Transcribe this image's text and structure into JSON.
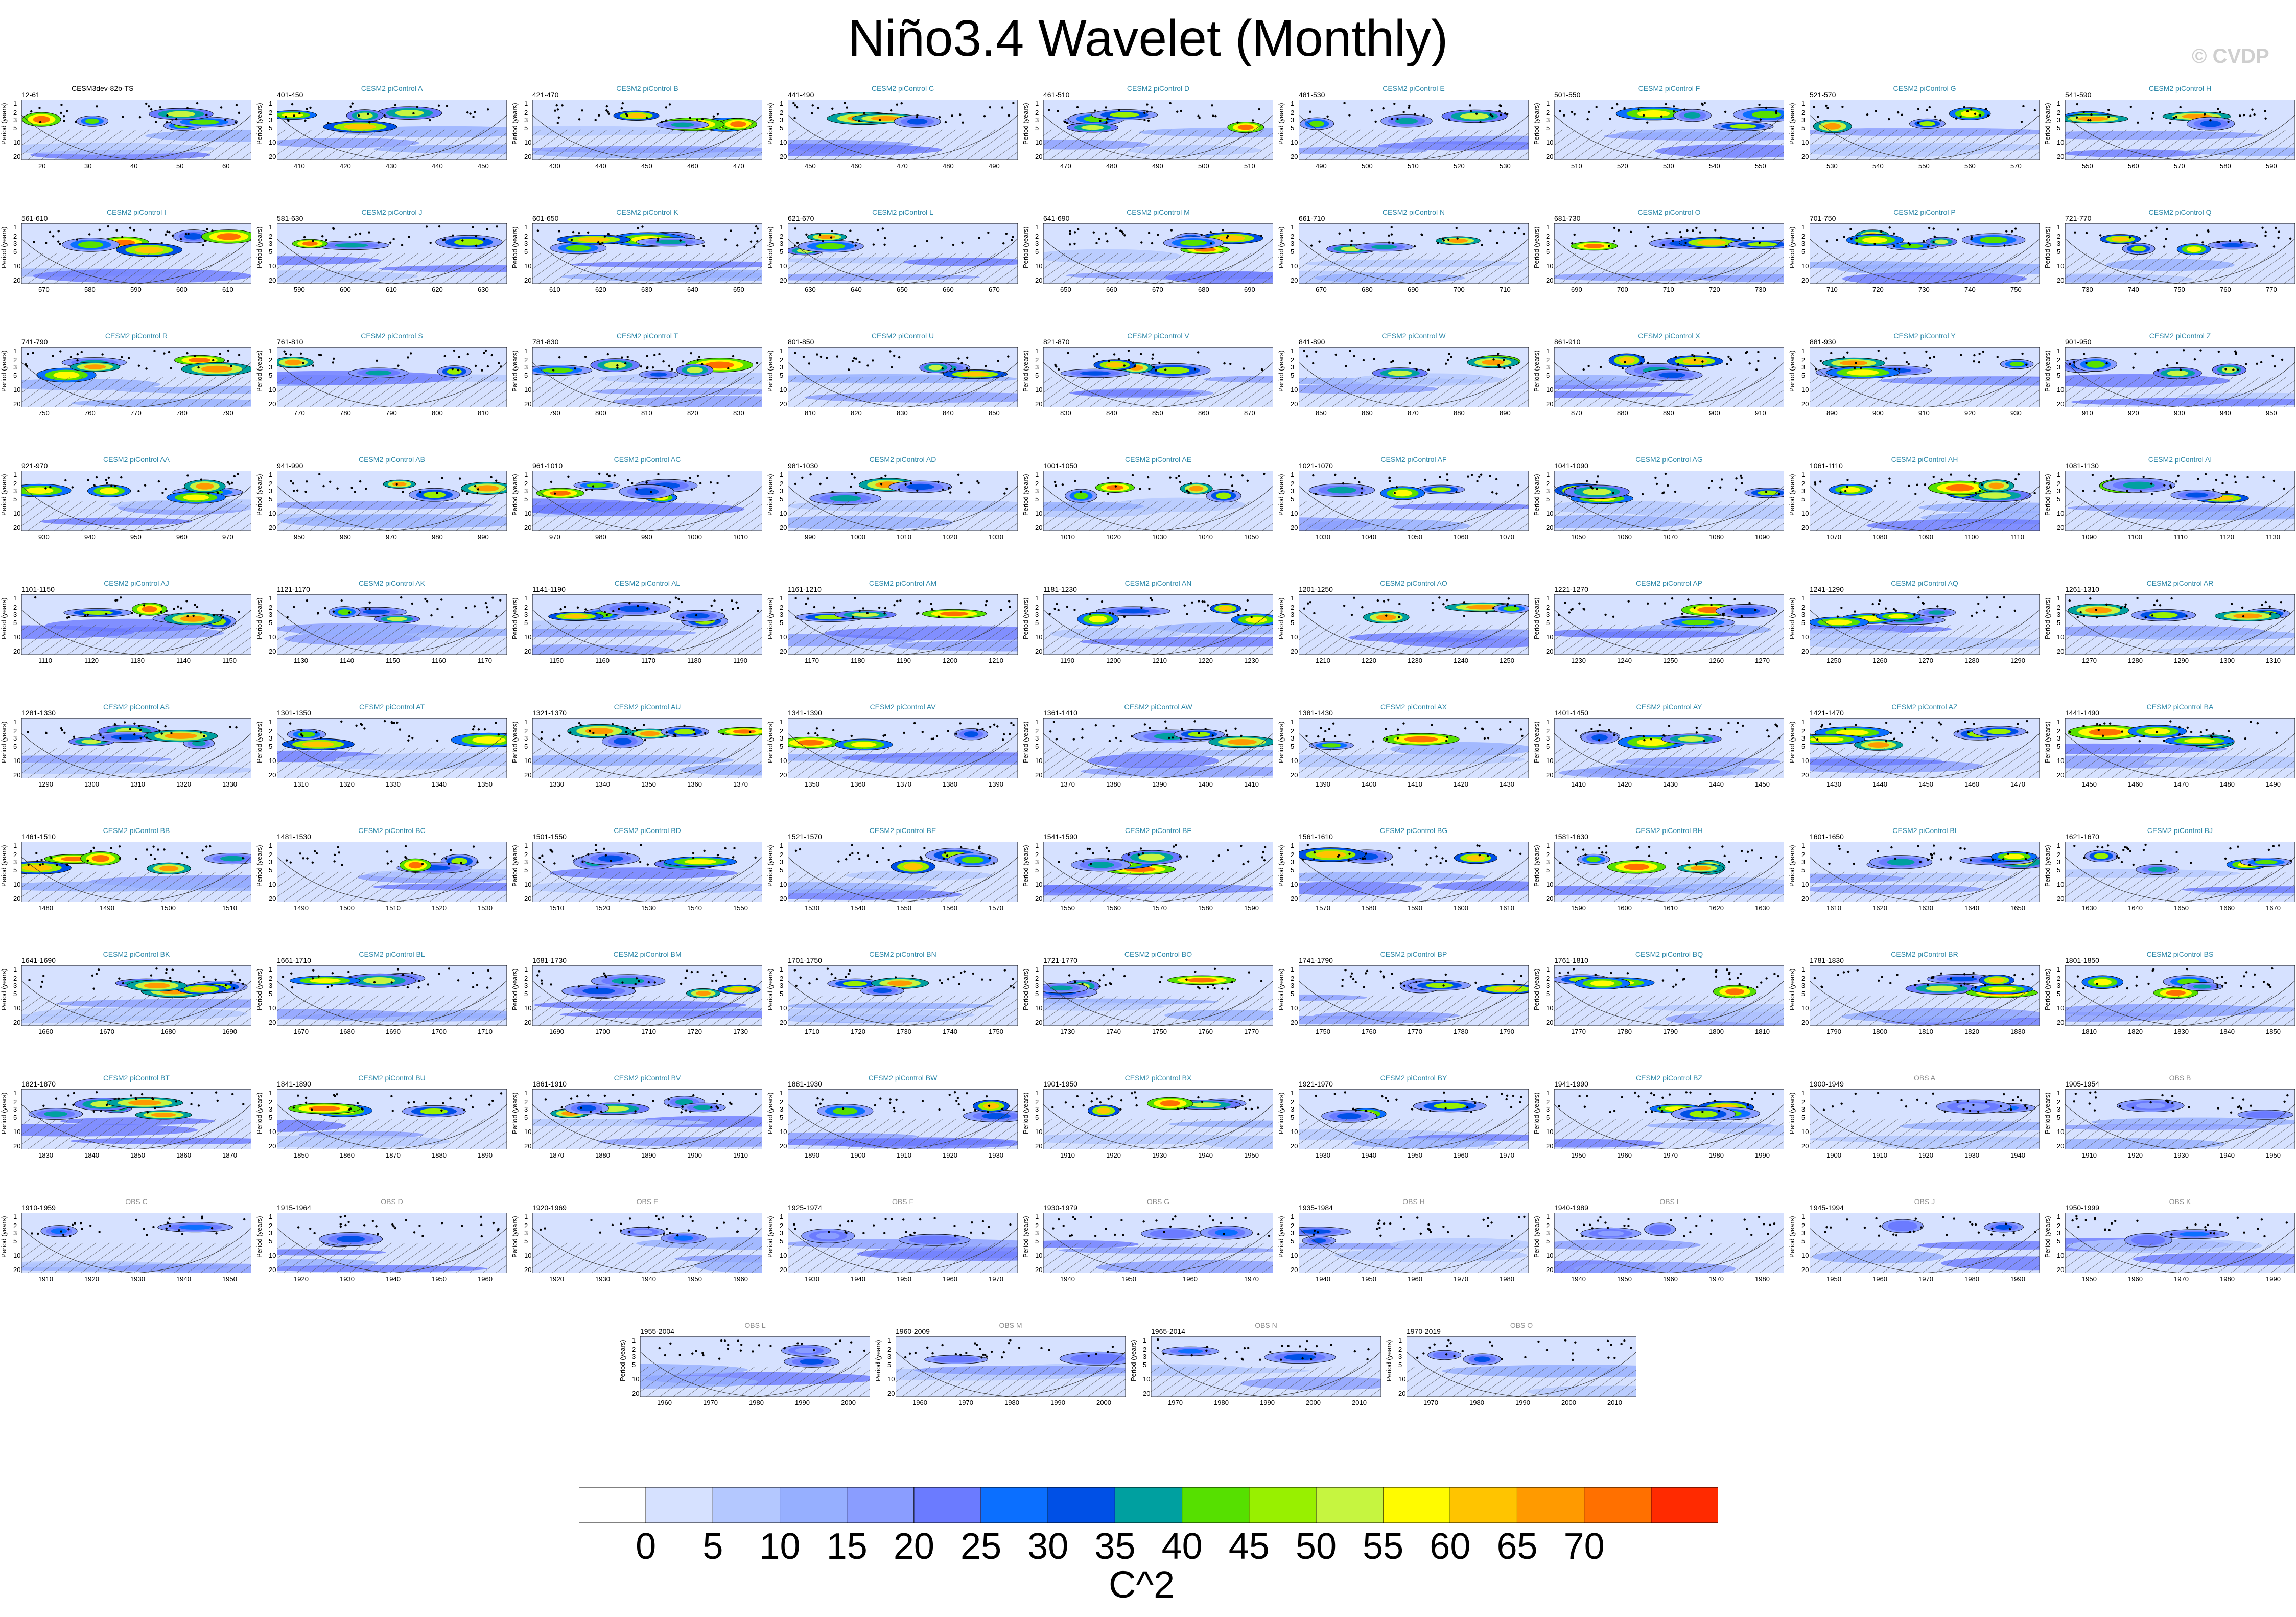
{
  "title": "Niño3.4 Wavelet (Monthly)",
  "watermark": "© CVDP",
  "y_axis_title": "Period (years)",
  "colorbar": {
    "unit_label": "C^2",
    "ticks": [
      "0",
      "5",
      "10",
      "15",
      "20",
      "25",
      "30",
      "35",
      "40",
      "45",
      "50",
      "55",
      "60",
      "65",
      "70"
    ],
    "colors": [
      "#ffffff",
      "#d6e1ff",
      "#b4c8ff",
      "#96afff",
      "#8a9dff",
      "#6b7bff",
      "#0b6fff",
      "#0050e6",
      "#00a0a0",
      "#56e000",
      "#98f000",
      "#c6f540",
      "#fffb00",
      "#ffc400",
      "#ff9a00",
      "#ff7000",
      "#ff2a00"
    ]
  },
  "chart_data": {
    "type": "heatmap",
    "title": "Niño3.4 Wavelet (Monthly)",
    "ylabel": "Period (years)",
    "yticks": [
      "1",
      "2",
      "3",
      "5",
      "10",
      "20"
    ],
    "panels": [
      {
        "years": "12-61",
        "name": "CESM3dev-82b-TS",
        "xticks": [
          "20",
          "30",
          "40",
          "50",
          "60"
        ]
      },
      {
        "years": "401-450",
        "name": "CESM2 piControl A",
        "xticks": [
          "410",
          "420",
          "430",
          "440",
          "450"
        ]
      },
      {
        "years": "421-470",
        "name": "CESM2 piControl B",
        "xticks": [
          "430",
          "440",
          "450",
          "460",
          "470"
        ]
      },
      {
        "years": "441-490",
        "name": "CESM2 piControl C",
        "xticks": [
          "450",
          "460",
          "470",
          "480",
          "490"
        ]
      },
      {
        "years": "461-510",
        "name": "CESM2 piControl D",
        "xticks": [
          "470",
          "480",
          "490",
          "500",
          "510"
        ]
      },
      {
        "years": "481-530",
        "name": "CESM2 piControl E",
        "xticks": [
          "490",
          "500",
          "510",
          "520",
          "530"
        ]
      },
      {
        "years": "501-550",
        "name": "CESM2 piControl F",
        "xticks": [
          "510",
          "520",
          "530",
          "540",
          "550"
        ]
      },
      {
        "years": "521-570",
        "name": "CESM2 piControl G",
        "xticks": [
          "530",
          "540",
          "550",
          "560",
          "570"
        ]
      },
      {
        "years": "541-590",
        "name": "CESM2 piControl H",
        "xticks": [
          "550",
          "560",
          "570",
          "580",
          "590"
        ]
      },
      {
        "years": "561-610",
        "name": "CESM2 piControl I",
        "xticks": [
          "570",
          "580",
          "590",
          "600",
          "610"
        ]
      },
      {
        "years": "581-630",
        "name": "CESM2 piControl J",
        "xticks": [
          "590",
          "600",
          "610",
          "620",
          "630"
        ]
      },
      {
        "years": "601-650",
        "name": "CESM2 piControl K",
        "xticks": [
          "610",
          "620",
          "630",
          "640",
          "650"
        ]
      },
      {
        "years": "621-670",
        "name": "CESM2 piControl L",
        "xticks": [
          "630",
          "640",
          "650",
          "660",
          "670"
        ]
      },
      {
        "years": "641-690",
        "name": "CESM2 piControl M",
        "xticks": [
          "650",
          "660",
          "670",
          "680",
          "690"
        ]
      },
      {
        "years": "661-710",
        "name": "CESM2 piControl N",
        "xticks": [
          "670",
          "680",
          "690",
          "700",
          "710"
        ]
      },
      {
        "years": "681-730",
        "name": "CESM2 piControl O",
        "xticks": [
          "690",
          "700",
          "710",
          "720",
          "730"
        ]
      },
      {
        "years": "701-750",
        "name": "CESM2 piControl P",
        "xticks": [
          "710",
          "720",
          "730",
          "740",
          "750"
        ]
      },
      {
        "years": "721-770",
        "name": "CESM2 piControl Q",
        "xticks": [
          "730",
          "740",
          "750",
          "760",
          "770"
        ]
      },
      {
        "years": "741-790",
        "name": "CESM2 piControl R",
        "xticks": [
          "750",
          "760",
          "770",
          "780",
          "790"
        ]
      },
      {
        "years": "761-810",
        "name": "CESM2 piControl S",
        "xticks": [
          "770",
          "780",
          "790",
          "800",
          "810"
        ]
      },
      {
        "years": "781-830",
        "name": "CESM2 piControl T",
        "xticks": [
          "790",
          "800",
          "810",
          "820",
          "830"
        ]
      },
      {
        "years": "801-850",
        "name": "CESM2 piControl U",
        "xticks": [
          "810",
          "820",
          "830",
          "840",
          "850"
        ]
      },
      {
        "years": "821-870",
        "name": "CESM2 piControl V",
        "xticks": [
          "830",
          "840",
          "850",
          "860",
          "870"
        ]
      },
      {
        "years": "841-890",
        "name": "CESM2 piControl W",
        "xticks": [
          "850",
          "860",
          "870",
          "880",
          "890"
        ]
      },
      {
        "years": "861-910",
        "name": "CESM2 piControl X",
        "xticks": [
          "870",
          "880",
          "890",
          "900",
          "910"
        ]
      },
      {
        "years": "881-930",
        "name": "CESM2 piControl Y",
        "xticks": [
          "890",
          "900",
          "910",
          "920",
          "930"
        ]
      },
      {
        "years": "901-950",
        "name": "CESM2 piControl Z",
        "xticks": [
          "910",
          "920",
          "930",
          "940",
          "950"
        ]
      },
      {
        "years": "921-970",
        "name": "CESM2 piControl AA",
        "xticks": [
          "930",
          "940",
          "950",
          "960",
          "970"
        ]
      },
      {
        "years": "941-990",
        "name": "CESM2 piControl AB",
        "xticks": [
          "950",
          "960",
          "970",
          "980",
          "990"
        ]
      },
      {
        "years": "961-1010",
        "name": "CESM2 piControl AC",
        "xticks": [
          "970",
          "980",
          "990",
          "1000",
          "1010"
        ]
      },
      {
        "years": "981-1030",
        "name": "CESM2 piControl AD",
        "xticks": [
          "990",
          "1000",
          "1010",
          "1020",
          "1030"
        ]
      },
      {
        "years": "1001-1050",
        "name": "CESM2 piControl AE",
        "xticks": [
          "1010",
          "1020",
          "1030",
          "1040",
          "1050"
        ]
      },
      {
        "years": "1021-1070",
        "name": "CESM2 piControl AF",
        "xticks": [
          "1030",
          "1040",
          "1050",
          "1060",
          "1070"
        ]
      },
      {
        "years": "1041-1090",
        "name": "CESM2 piControl AG",
        "xticks": [
          "1050",
          "1060",
          "1070",
          "1080",
          "1090"
        ]
      },
      {
        "years": "1061-1110",
        "name": "CESM2 piControl AH",
        "xticks": [
          "1070",
          "1080",
          "1090",
          "1100",
          "1110"
        ]
      },
      {
        "years": "1081-1130",
        "name": "CESM2 piControl AI",
        "xticks": [
          "1090",
          "1100",
          "1110",
          "1120",
          "1130"
        ]
      },
      {
        "years": "1101-1150",
        "name": "CESM2 piControl AJ",
        "xticks": [
          "1110",
          "1120",
          "1130",
          "1140",
          "1150"
        ]
      },
      {
        "years": "1121-1170",
        "name": "CESM2 piControl AK",
        "xticks": [
          "1130",
          "1140",
          "1150",
          "1160",
          "1170"
        ]
      },
      {
        "years": "1141-1190",
        "name": "CESM2 piControl AL",
        "xticks": [
          "1150",
          "1160",
          "1170",
          "1180",
          "1190"
        ]
      },
      {
        "years": "1161-1210",
        "name": "CESM2 piControl AM",
        "xticks": [
          "1170",
          "1180",
          "1190",
          "1200",
          "1210"
        ]
      },
      {
        "years": "1181-1230",
        "name": "CESM2 piControl AN",
        "xticks": [
          "1190",
          "1200",
          "1210",
          "1220",
          "1230"
        ]
      },
      {
        "years": "1201-1250",
        "name": "CESM2 piControl AO",
        "xticks": [
          "1210",
          "1220",
          "1230",
          "1240",
          "1250"
        ]
      },
      {
        "years": "1221-1270",
        "name": "CESM2 piControl AP",
        "xticks": [
          "1230",
          "1240",
          "1250",
          "1260",
          "1270"
        ]
      },
      {
        "years": "1241-1290",
        "name": "CESM2 piControl AQ",
        "xticks": [
          "1250",
          "1260",
          "1270",
          "1280",
          "1290"
        ]
      },
      {
        "years": "1261-1310",
        "name": "CESM2 piControl AR",
        "xticks": [
          "1270",
          "1280",
          "1290",
          "1300",
          "1310"
        ]
      },
      {
        "years": "1281-1330",
        "name": "CESM2 piControl AS",
        "xticks": [
          "1290",
          "1300",
          "1310",
          "1320",
          "1330"
        ]
      },
      {
        "years": "1301-1350",
        "name": "CESM2 piControl AT",
        "xticks": [
          "1310",
          "1320",
          "1330",
          "1340",
          "1350"
        ]
      },
      {
        "years": "1321-1370",
        "name": "CESM2 piControl AU",
        "xticks": [
          "1330",
          "1340",
          "1350",
          "1360",
          "1370"
        ]
      },
      {
        "years": "1341-1390",
        "name": "CESM2 piControl AV",
        "xticks": [
          "1350",
          "1360",
          "1370",
          "1380",
          "1390"
        ]
      },
      {
        "years": "1361-1410",
        "name": "CESM2 piControl AW",
        "xticks": [
          "1370",
          "1380",
          "1390",
          "1400",
          "1410"
        ]
      },
      {
        "years": "1381-1430",
        "name": "CESM2 piControl AX",
        "xticks": [
          "1390",
          "1400",
          "1410",
          "1420",
          "1430"
        ]
      },
      {
        "years": "1401-1450",
        "name": "CESM2 piControl AY",
        "xticks": [
          "1410",
          "1420",
          "1430",
          "1440",
          "1450"
        ]
      },
      {
        "years": "1421-1470",
        "name": "CESM2 piControl AZ",
        "xticks": [
          "1430",
          "1440",
          "1450",
          "1460",
          "1470"
        ]
      },
      {
        "years": "1441-1490",
        "name": "CESM2 piControl BA",
        "xticks": [
          "1450",
          "1460",
          "1470",
          "1480",
          "1490"
        ]
      },
      {
        "years": "1461-1510",
        "name": "CESM2 piControl BB",
        "xticks": [
          "1480",
          "1490",
          "1500",
          "1510"
        ]
      },
      {
        "years": "1481-1530",
        "name": "CESM2 piControl BC",
        "xticks": [
          "1490",
          "1500",
          "1510",
          "1520",
          "1530"
        ]
      },
      {
        "years": "1501-1550",
        "name": "CESM2 piControl BD",
        "xticks": [
          "1510",
          "1520",
          "1530",
          "1540",
          "1550"
        ]
      },
      {
        "years": "1521-1570",
        "name": "CESM2 piControl BE",
        "xticks": [
          "1530",
          "1540",
          "1550",
          "1560",
          "1570"
        ]
      },
      {
        "years": "1541-1590",
        "name": "CESM2 piControl BF",
        "xticks": [
          "1550",
          "1560",
          "1570",
          "1580",
          "1590"
        ]
      },
      {
        "years": "1561-1610",
        "name": "CESM2 piControl BG",
        "xticks": [
          "1570",
          "1580",
          "1590",
          "1600",
          "1610"
        ]
      },
      {
        "years": "1581-1630",
        "name": "CESM2 piControl BH",
        "xticks": [
          "1590",
          "1600",
          "1610",
          "1620",
          "1630"
        ]
      },
      {
        "years": "1601-1650",
        "name": "CESM2 piControl BI",
        "xticks": [
          "1610",
          "1620",
          "1630",
          "1640",
          "1650"
        ]
      },
      {
        "years": "1621-1670",
        "name": "CESM2 piControl BJ",
        "xticks": [
          "1630",
          "1640",
          "1650",
          "1660",
          "1670"
        ]
      },
      {
        "years": "1641-1690",
        "name": "CESM2 piControl BK",
        "xticks": [
          "1660",
          "1670",
          "1680",
          "1690"
        ]
      },
      {
        "years": "1661-1710",
        "name": "CESM2 piControl BL",
        "xticks": [
          "1670",
          "1680",
          "1690",
          "1700",
          "1710"
        ]
      },
      {
        "years": "1681-1730",
        "name": "CESM2 piControl BM",
        "xticks": [
          "1690",
          "1700",
          "1710",
          "1720",
          "1730"
        ]
      },
      {
        "years": "1701-1750",
        "name": "CESM2 piControl BN",
        "xticks": [
          "1710",
          "1720",
          "1730",
          "1740",
          "1750"
        ]
      },
      {
        "years": "1721-1770",
        "name": "CESM2 piControl BO",
        "xticks": [
          "1730",
          "1740",
          "1750",
          "1760",
          "1770"
        ]
      },
      {
        "years": "1741-1790",
        "name": "CESM2 piControl BP",
        "xticks": [
          "1750",
          "1760",
          "1770",
          "1780",
          "1790"
        ]
      },
      {
        "years": "1761-1810",
        "name": "CESM2 piControl BQ",
        "xticks": [
          "1770",
          "1780",
          "1790",
          "1800",
          "1810"
        ]
      },
      {
        "years": "1781-1830",
        "name": "CESM2 piControl BR",
        "xticks": [
          "1790",
          "1800",
          "1810",
          "1820",
          "1830"
        ]
      },
      {
        "years": "1801-1850",
        "name": "CESM2 piControl BS",
        "xticks": [
          "1810",
          "1820",
          "1830",
          "1840",
          "1850"
        ]
      },
      {
        "years": "1821-1870",
        "name": "CESM2 piControl BT",
        "xticks": [
          "1830",
          "1840",
          "1850",
          "1860",
          "1870"
        ]
      },
      {
        "years": "1841-1890",
        "name": "CESM2 piControl BU",
        "xticks": [
          "1850",
          "1860",
          "1870",
          "1880",
          "1890"
        ]
      },
      {
        "years": "1861-1910",
        "name": "CESM2 piControl BV",
        "xticks": [
          "1870",
          "1880",
          "1890",
          "1900",
          "1910"
        ]
      },
      {
        "years": "1881-1930",
        "name": "CESM2 piControl BW",
        "xticks": [
          "1890",
          "1900",
          "1910",
          "1920",
          "1930"
        ]
      },
      {
        "years": "1901-1950",
        "name": "CESM2 piControl BX",
        "xticks": [
          "1910",
          "1920",
          "1930",
          "1940",
          "1950"
        ]
      },
      {
        "years": "1921-1970",
        "name": "CESM2 piControl BY",
        "xticks": [
          "1930",
          "1940",
          "1950",
          "1960",
          "1970"
        ]
      },
      {
        "years": "1941-1990",
        "name": "CESM2 piControl BZ",
        "xticks": [
          "1950",
          "1960",
          "1970",
          "1980",
          "1990"
        ]
      },
      {
        "years": "1900-1949",
        "name": "OBS A",
        "xticks": [
          "1900",
          "1910",
          "1920",
          "1930",
          "1940"
        ]
      },
      {
        "years": "1905-1954",
        "name": "OBS B",
        "xticks": [
          "1910",
          "1920",
          "1930",
          "1940",
          "1950"
        ]
      },
      {
        "years": "1910-1959",
        "name": "OBS C",
        "xticks": [
          "1910",
          "1920",
          "1930",
          "1940",
          "1950"
        ]
      },
      {
        "years": "1915-1964",
        "name": "OBS D",
        "xticks": [
          "1920",
          "1930",
          "1940",
          "1950",
          "1960"
        ]
      },
      {
        "years": "1920-1969",
        "name": "OBS E",
        "xticks": [
          "1920",
          "1930",
          "1940",
          "1950",
          "1960"
        ]
      },
      {
        "years": "1925-1974",
        "name": "OBS F",
        "xticks": [
          "1930",
          "1940",
          "1950",
          "1960",
          "1970"
        ]
      },
      {
        "years": "1930-1979",
        "name": "OBS G",
        "xticks": [
          "1940",
          "1950",
          "1960",
          "1970"
        ]
      },
      {
        "years": "1935-1984",
        "name": "OBS H",
        "xticks": [
          "1940",
          "1950",
          "1960",
          "1970",
          "1980"
        ]
      },
      {
        "years": "1940-1989",
        "name": "OBS I",
        "xticks": [
          "1940",
          "1950",
          "1960",
          "1970",
          "1980"
        ]
      },
      {
        "years": "1945-1994",
        "name": "OBS J",
        "xticks": [
          "1950",
          "1960",
          "1970",
          "1980",
          "1990"
        ]
      },
      {
        "years": "1950-1999",
        "name": "OBS K",
        "xticks": [
          "1950",
          "1960",
          "1970",
          "1980",
          "1990"
        ]
      },
      {
        "years": "1955-2004",
        "name": "OBS L",
        "xticks": [
          "1960",
          "1970",
          "1980",
          "1990",
          "2000"
        ]
      },
      {
        "years": "1960-2009",
        "name": "OBS M",
        "xticks": [
          "1960",
          "1970",
          "1980",
          "1990",
          "2000"
        ]
      },
      {
        "years": "1965-2014",
        "name": "OBS N",
        "xticks": [
          "1970",
          "1980",
          "1990",
          "2000",
          "2010"
        ]
      },
      {
        "years": "1970-2019",
        "name": "OBS O",
        "xticks": [
          "1970",
          "1980",
          "1990",
          "2000",
          "2010"
        ]
      }
    ]
  }
}
